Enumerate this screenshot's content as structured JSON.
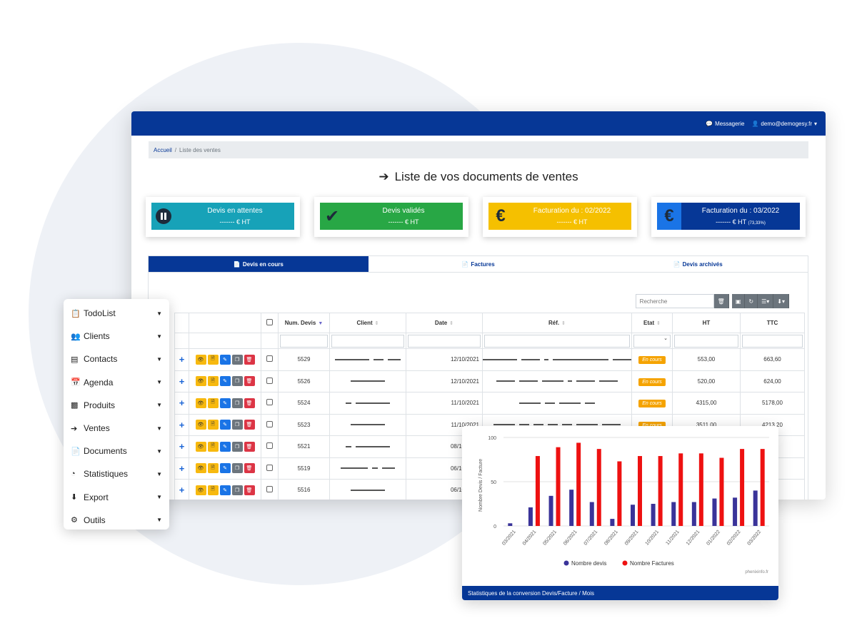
{
  "topbar": {
    "messagerie": "Messagerie",
    "user": "demo@demogesy.fr"
  },
  "breadcrumb": {
    "home": "Accueil",
    "sep": "/",
    "current": "Liste des ventes"
  },
  "page": {
    "title": "Liste de vos documents de ventes"
  },
  "cards": [
    {
      "title": "Devis en attentes",
      "value": "------- € HT",
      "extra": "",
      "color": "#17a2b8"
    },
    {
      "title": "Devis validés",
      "value": "------- € HT",
      "extra": "",
      "color": "#28a745"
    },
    {
      "title": "Facturation du : 02/2022",
      "value": "------- € HT",
      "extra": "",
      "color": "#f5c000"
    },
    {
      "title": "Facturation du : 03/2022",
      "value": "------- € HT",
      "extra": "(73,33%)",
      "color": "#063796"
    }
  ],
  "tabs": [
    "Devis en cours",
    "Factures",
    "Devis archivés"
  ],
  "toolbar": {
    "search_placeholder": "Recherche"
  },
  "table": {
    "headers": [
      "Num. Devis",
      "Client",
      "Date",
      "Réf.",
      "Etat",
      "HT",
      "TTC"
    ],
    "rows": [
      {
        "num": "5529",
        "date": "12/10/2021",
        "etat": "En cours",
        "ht": "553,00",
        "ttc": "663,60"
      },
      {
        "num": "5526",
        "date": "12/10/2021",
        "etat": "En cours",
        "ht": "520,00",
        "ttc": "624,00"
      },
      {
        "num": "5524",
        "date": "11/10/2021",
        "etat": "En cours",
        "ht": "4315,00",
        "ttc": "5178,00"
      },
      {
        "num": "5523",
        "date": "11/10/2021",
        "etat": "En cours",
        "ht": "3511,00",
        "ttc": "4213,20"
      },
      {
        "num": "5521",
        "date": "08/10/2021",
        "etat": "",
        "ht": "",
        "ttc": ""
      },
      {
        "num": "5519",
        "date": "06/10/2021",
        "etat": "",
        "ht": "",
        "ttc": ""
      },
      {
        "num": "5516",
        "date": "06/10/2021",
        "etat": "",
        "ht": "",
        "ttc": ""
      }
    ]
  },
  "sidemenu": [
    {
      "label": "TodoList",
      "icon": "clipboard-icon"
    },
    {
      "label": "Clients",
      "icon": "users-icon"
    },
    {
      "label": "Contacts",
      "icon": "id-card-icon"
    },
    {
      "label": "Agenda",
      "icon": "calendar-icon"
    },
    {
      "label": "Produits",
      "icon": "boxes-icon"
    },
    {
      "label": "Ventes",
      "icon": "arrow-right-icon"
    },
    {
      "label": "Documents",
      "icon": "file-icon"
    },
    {
      "label": "Statistiques",
      "icon": "pie-chart-icon"
    },
    {
      "label": "Export",
      "icon": "download-icon"
    },
    {
      "label": "Outils",
      "icon": "cogs-icon"
    }
  ],
  "chart_footer": "Statistiques de la conversion Devis/Facture / Mois",
  "chart_credit": "phenixinfo.fr",
  "chart_data": {
    "type": "bar",
    "ylabel": "Nombre Devis / Facture",
    "ylim": [
      0,
      100
    ],
    "yticks": [
      0,
      50,
      100
    ],
    "categories": [
      "03/2021",
      "04/2021",
      "05/2021",
      "06/2021",
      "07/2021",
      "08/2021",
      "09/2021",
      "10/2021",
      "11/2021",
      "12/2021",
      "01/2022",
      "02/2022",
      "03/2022"
    ],
    "series": [
      {
        "name": "Nombre devis",
        "color": "#3a3399",
        "values": [
          3,
          21,
          34,
          41,
          27,
          8,
          24,
          25,
          27,
          27,
          31,
          32,
          40
        ]
      },
      {
        "name": "Nombre Factures",
        "color": "#ee1111",
        "values": [
          0,
          79,
          89,
          94,
          87,
          73,
          79,
          79,
          82,
          82,
          77,
          87,
          87
        ]
      }
    ],
    "legend": "bottom"
  }
}
